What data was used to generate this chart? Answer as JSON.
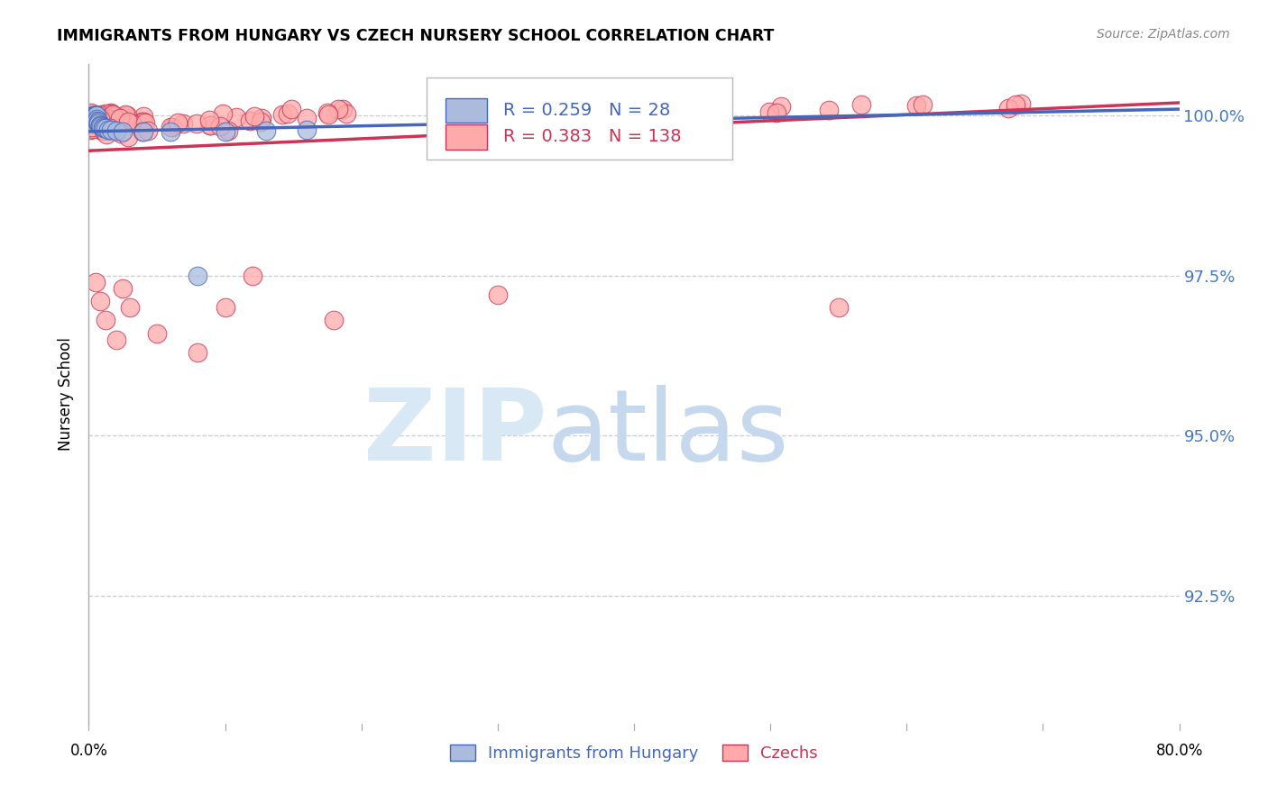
{
  "title": "IMMIGRANTS FROM HUNGARY VS CZECH NURSERY SCHOOL CORRELATION CHART",
  "source": "Source: ZipAtlas.com",
  "ylabel": "Nursery School",
  "ytick_labels": [
    "100.0%",
    "97.5%",
    "95.0%",
    "92.5%"
  ],
  "ytick_values": [
    1.0,
    0.975,
    0.95,
    0.925
  ],
  "xlim": [
    0.0,
    0.8
  ],
  "ylim": [
    0.905,
    1.008
  ],
  "legend_blue_r": "0.259",
  "legend_blue_n": "28",
  "legend_pink_r": "0.383",
  "legend_pink_n": "138",
  "legend_label_blue": "Immigrants from Hungary",
  "legend_label_pink": "Czechs",
  "blue_color": "#AABBDD",
  "pink_color": "#FFAAAA",
  "trendline_blue": "#4466BB",
  "trendline_pink": "#CC3355",
  "background_color": "#FFFFFF",
  "blue_trend_x0": 0.0,
  "blue_trend_y0": 0.9975,
  "blue_trend_x1": 0.8,
  "blue_trend_y1": 1.001,
  "pink_trend_x0": 0.0,
  "pink_trend_y0": 0.9945,
  "pink_trend_x1": 0.8,
  "pink_trend_y1": 1.002
}
